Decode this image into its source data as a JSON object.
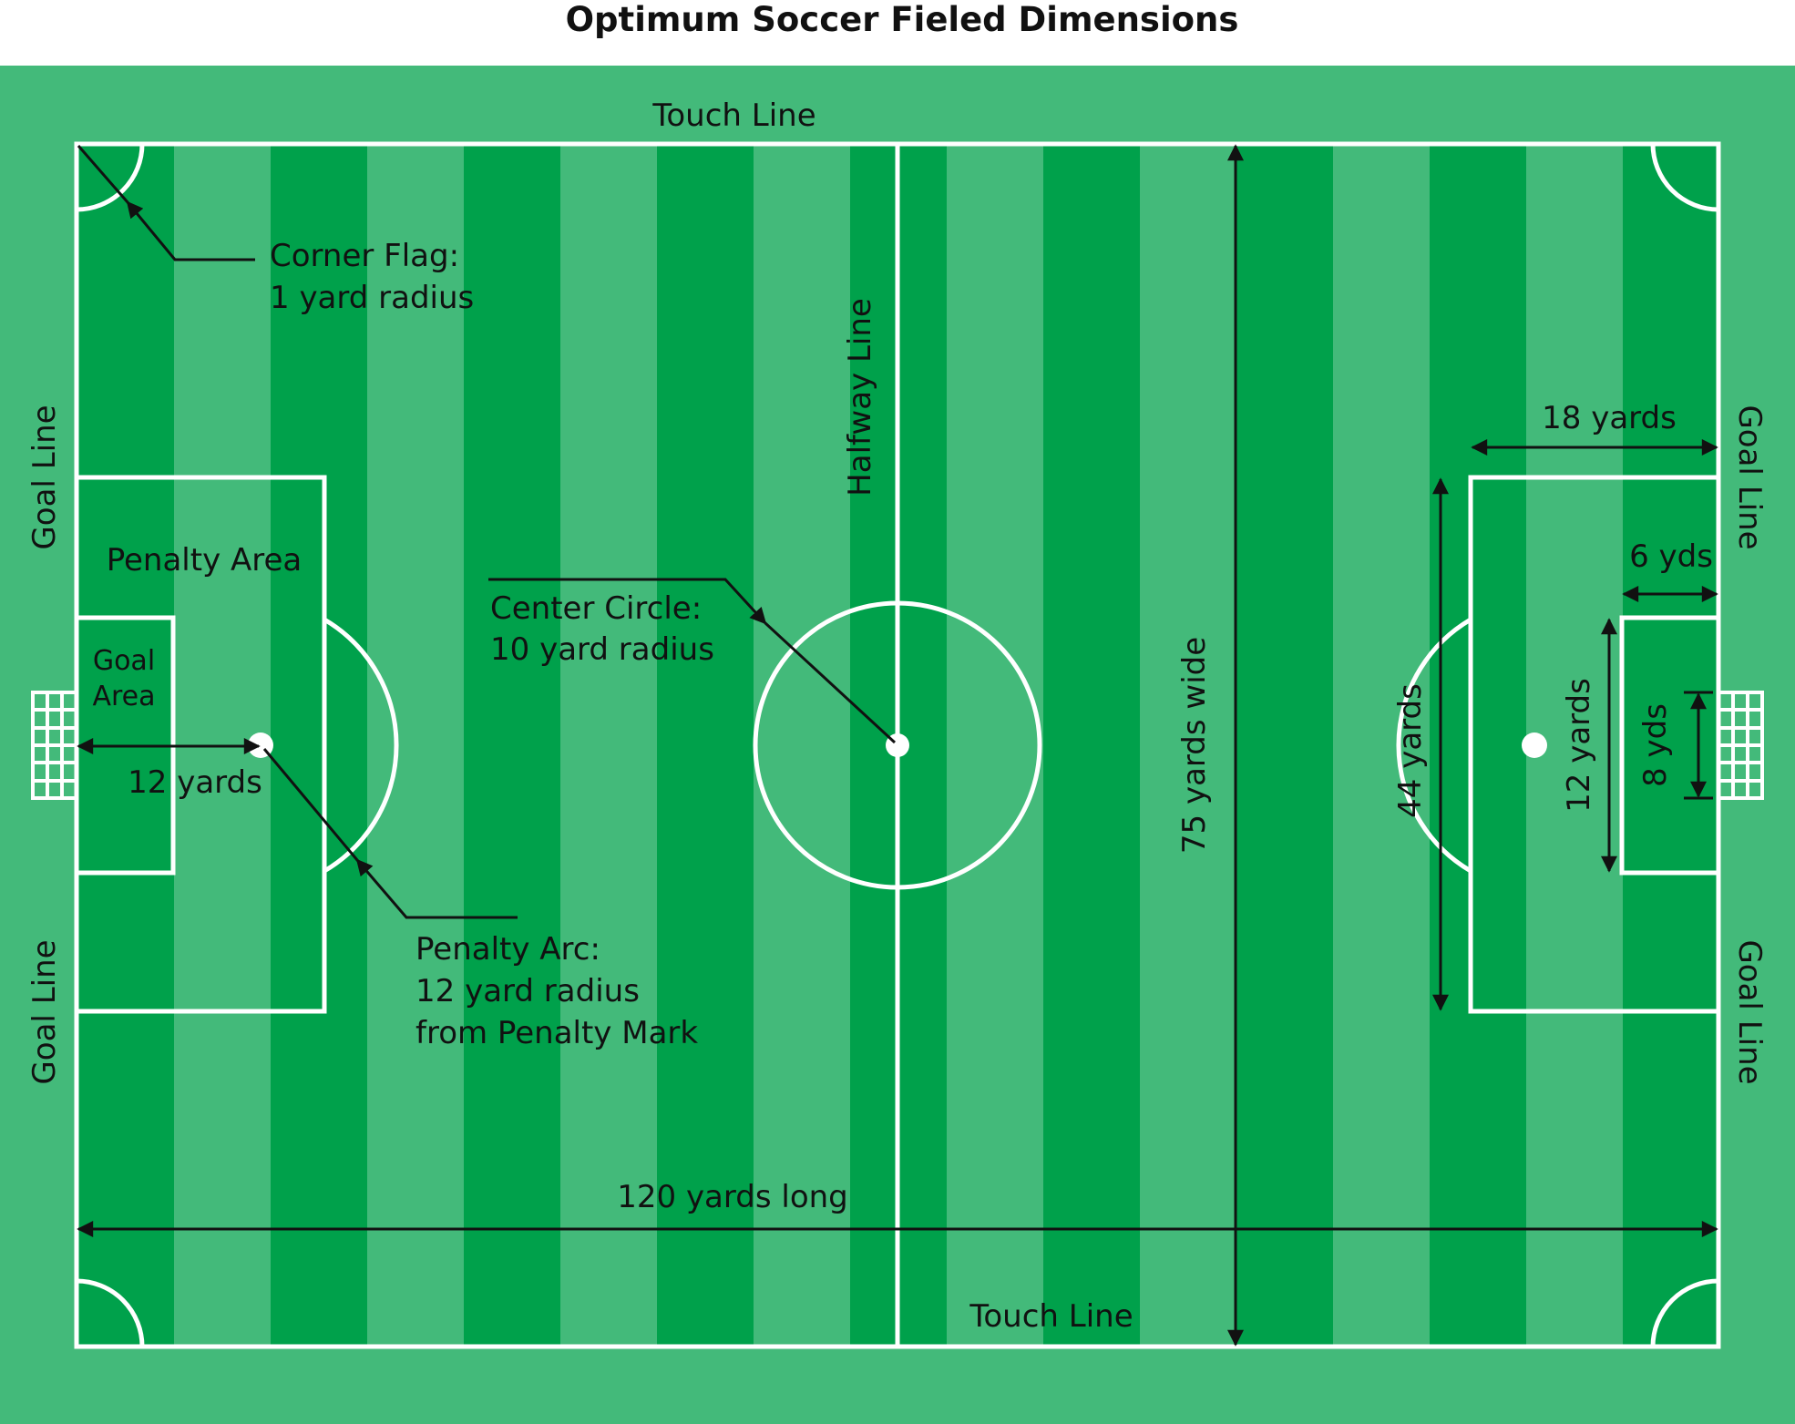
{
  "title": "Optimum Soccer Fieled Dimensions",
  "colors": {
    "background": "#ffffff",
    "border_green": "#43ba7a",
    "stripe_dark": "#00a14b",
    "stripe_light": "#43ba7a",
    "field_lines": "#ffffff",
    "annotation": "#111111"
  },
  "labels": {
    "touch_line_top": "Touch Line",
    "touch_line_bottom": "Touch Line",
    "goal_line_left_upper": "Goal Line",
    "goal_line_left_lower": "Goal Line",
    "goal_line_right_upper": "Goal Line",
    "goal_line_right_lower": "Goal Line",
    "halfway_line": "Halfway Line",
    "corner_flag_line1": "Corner Flag:",
    "corner_flag_line2": "1 yard radius",
    "penalty_area": "Penalty Area",
    "goal_area_line1": "Goal",
    "goal_area_line2": "Area",
    "penalty_mark_distance": "12 yards",
    "penalty_arc_line1": "Penalty Arc:",
    "penalty_arc_line2": "12 yard radius",
    "penalty_arc_line3": "from Penalty Mark",
    "center_circle_line1": "Center Circle:",
    "center_circle_line2": "10 yard radius",
    "field_width": "75 yards wide",
    "field_length": "120 yards long",
    "penalty_area_width": "44 yards",
    "penalty_area_depth": "18 yards",
    "goal_area_depth": "6 yds",
    "goal_area_width": "12 yards",
    "goal_width": "8 yds"
  }
}
